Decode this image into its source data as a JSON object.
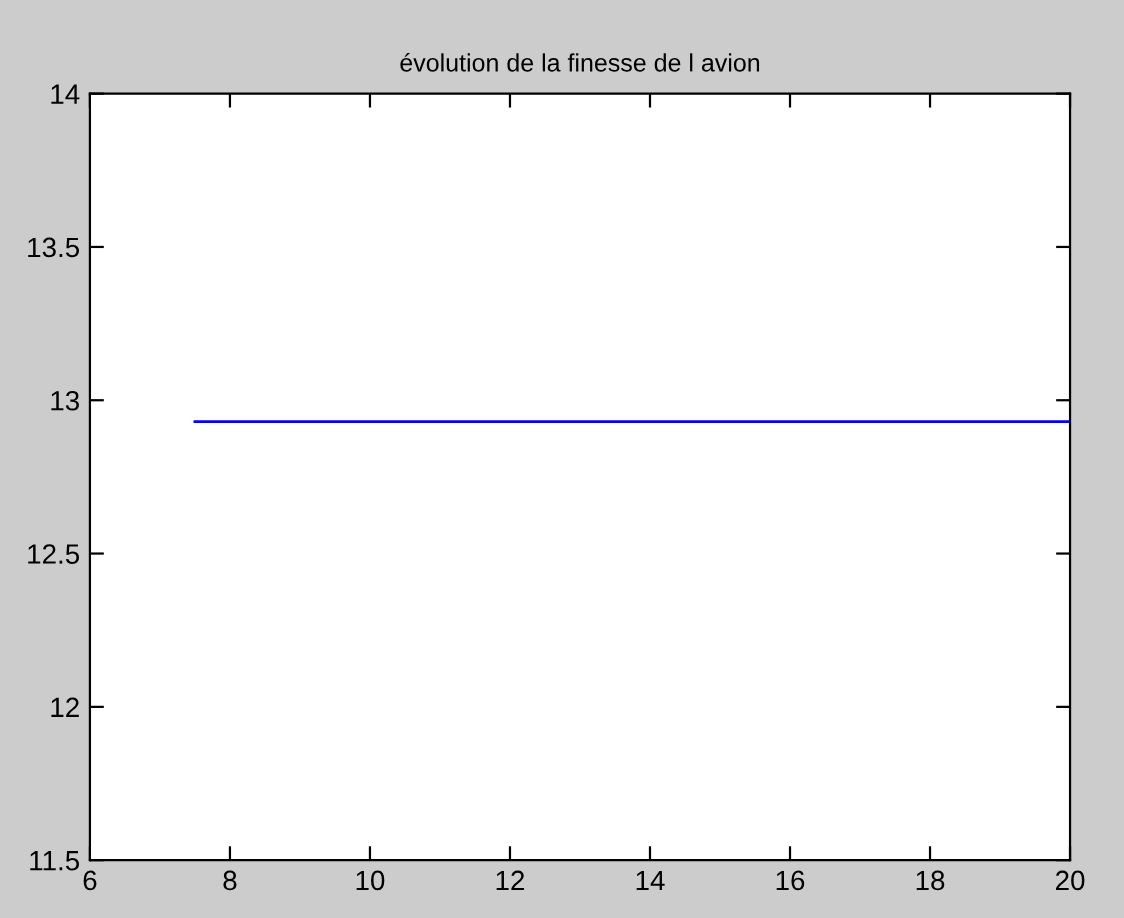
{
  "chart_data": {
    "type": "line",
    "title": "évolution de la finesse de l avion",
    "x": [
      7.5,
      20
    ],
    "series": [
      {
        "color": "#0000ff",
        "values": [
          12.93,
          12.93
        ]
      }
    ],
    "xlim": [
      6,
      20
    ],
    "xticks": [
      6,
      8,
      10,
      12,
      14,
      16,
      18,
      20
    ],
    "ylim": [
      11.5,
      14
    ],
    "yticks": [
      11.5,
      12,
      12.5,
      13,
      13.5,
      14
    ],
    "grid": false
  }
}
